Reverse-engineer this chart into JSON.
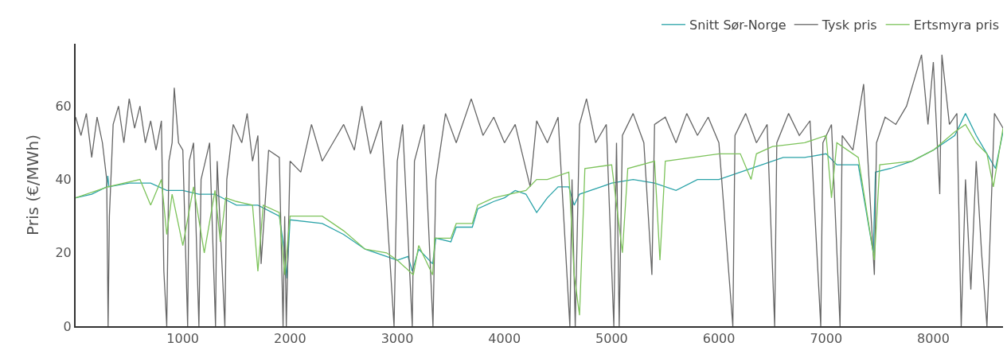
{
  "chart_data": {
    "type": "line",
    "ylabel": "Pris (€/MWh)",
    "xlim": [
      0,
      8650
    ],
    "ylim": [
      0,
      77
    ],
    "xticks": [
      1000,
      2000,
      3000,
      4000,
      5000,
      6000,
      7000,
      8000
    ],
    "yticks": [
      0,
      20,
      40,
      60
    ],
    "legend": "top right",
    "marker": "none",
    "line_style": "solid",
    "series": [
      {
        "name": "Snitt Sør-Norge",
        "color": "#2aa3a8",
        "x": [
          0,
          150,
          290,
          300,
          310,
          500,
          700,
          850,
          1000,
          1150,
          1300,
          1500,
          1700,
          1900,
          1950,
          1970,
          2000,
          2300,
          2500,
          2700,
          2900,
          3000,
          3100,
          3140,
          3200,
          3330,
          3360,
          3500,
          3550,
          3700,
          3750,
          3900,
          4000,
          4100,
          4200,
          4300,
          4400,
          4500,
          4600,
          4650,
          4700,
          4900,
          5000,
          5200,
          5400,
          5600,
          5800,
          6000,
          6200,
          6400,
          6600,
          6800,
          7000,
          7100,
          7300,
          7440,
          7460,
          7600,
          7800,
          8000,
          8200,
          8300,
          8400,
          8500,
          8580,
          8650
        ],
        "values": [
          35,
          36,
          38,
          41,
          38,
          39,
          39,
          37,
          37,
          36,
          36,
          33,
          33,
          30,
          20,
          13,
          29,
          28,
          25,
          21,
          19,
          18,
          19,
          15,
          21,
          17,
          24,
          23,
          27,
          27,
          32,
          34,
          35,
          37,
          36,
          31,
          35,
          38,
          38,
          33,
          36,
          38,
          39,
          40,
          39,
          37,
          40,
          40,
          42,
          44,
          46,
          46,
          47,
          44,
          44,
          20,
          42,
          43,
          45,
          48,
          52,
          58,
          52,
          47,
          43,
          53
        ]
      },
      {
        "name": "Tysk pris",
        "color": "#666666",
        "x": [
          0,
          50,
          100,
          150,
          200,
          250,
          290,
          303,
          315,
          350,
          400,
          450,
          500,
          550,
          600,
          650,
          700,
          750,
          800,
          823,
          850,
          870,
          900,
          920,
          960,
          1000,
          1045,
          1060,
          1100,
          1150,
          1170,
          1250,
          1305,
          1320,
          1392,
          1410,
          1470,
          1550,
          1600,
          1650,
          1700,
          1730,
          1800,
          1900,
          1935,
          1950,
          1965,
          2000,
          2100,
          2200,
          2300,
          2400,
          2500,
          2600,
          2670,
          2750,
          2850,
          2970,
          3000,
          3050,
          3140,
          3160,
          3250,
          3333,
          3360,
          3450,
          3550,
          3690,
          3800,
          3900,
          4000,
          4100,
          4240,
          4300,
          4400,
          4500,
          4610,
          4630,
          4660,
          4700,
          4765,
          4850,
          4950,
          5020,
          5045,
          5070,
          5100,
          5200,
          5300,
          5375,
          5400,
          5500,
          5600,
          5700,
          5800,
          5900,
          6000,
          6130,
          6150,
          6250,
          6350,
          6450,
          6520,
          6540,
          6650,
          6750,
          6850,
          6950,
          6970,
          7050,
          7130,
          7150,
          7250,
          7350,
          7450,
          7470,
          7550,
          7650,
          7750,
          7890,
          7950,
          8000,
          8060,
          8080,
          8150,
          8220,
          8260,
          8300,
          8350,
          8400,
          8450,
          8500,
          8570,
          8650
        ],
        "values": [
          57,
          52,
          58,
          46,
          57,
          50,
          40,
          0,
          30,
          55,
          60,
          50,
          62,
          54,
          60,
          50,
          56,
          48,
          56,
          15,
          0,
          45,
          50,
          65,
          50,
          48,
          0,
          45,
          50,
          0,
          40,
          50,
          0,
          45,
          0,
          40,
          55,
          50,
          58,
          45,
          52,
          17,
          48,
          46,
          0,
          30,
          0,
          45,
          42,
          55,
          45,
          50,
          55,
          48,
          60,
          47,
          56,
          0,
          45,
          55,
          0,
          45,
          55,
          0,
          40,
          58,
          50,
          62,
          52,
          57,
          50,
          55,
          38,
          56,
          50,
          57,
          0,
          40,
          0,
          55,
          62,
          50,
          55,
          0,
          50,
          0,
          52,
          58,
          50,
          14,
          55,
          57,
          50,
          58,
          52,
          57,
          50,
          0,
          52,
          58,
          50,
          55,
          0,
          50,
          58,
          52,
          56,
          0,
          50,
          55,
          0,
          52,
          48,
          66,
          14,
          50,
          57,
          55,
          60,
          74,
          55,
          72,
          36,
          74,
          55,
          58,
          0,
          40,
          10,
          45,
          20,
          0,
          58,
          54
        ]
      },
      {
        "name": "Ertsmyra pris",
        "color": "#7dc35b",
        "x": [
          0,
          300,
          600,
          700,
          800,
          850,
          900,
          1000,
          1100,
          1200,
          1300,
          1350,
          1400,
          1500,
          1650,
          1700,
          1750,
          1900,
          1950,
          2000,
          2300,
          2500,
          2700,
          2900,
          3000,
          3150,
          3200,
          3330,
          3350,
          3500,
          3550,
          3700,
          3750,
          3900,
          4200,
          4300,
          4400,
          4600,
          4650,
          4700,
          4750,
          5000,
          5100,
          5150,
          5400,
          5450,
          5500,
          6000,
          6200,
          6300,
          6350,
          6500,
          6800,
          7000,
          7050,
          7100,
          7300,
          7450,
          7500,
          7800,
          8000,
          8200,
          8300,
          8400,
          8500,
          8560,
          8650
        ],
        "values": [
          35,
          38,
          40,
          33,
          40,
          25,
          36,
          22,
          38,
          20,
          37,
          23,
          35,
          34,
          33,
          15,
          33,
          31,
          14,
          30,
          30,
          26,
          21,
          20,
          18,
          14,
          22,
          14,
          24,
          24,
          28,
          28,
          33,
          35,
          37,
          40,
          40,
          42,
          14,
          3,
          43,
          44,
          20,
          43,
          45,
          18,
          45,
          47,
          47,
          40,
          47,
          49,
          50,
          52,
          35,
          50,
          46,
          18,
          44,
          45,
          48,
          53,
          55,
          50,
          47,
          38,
          54
        ]
      }
    ]
  }
}
